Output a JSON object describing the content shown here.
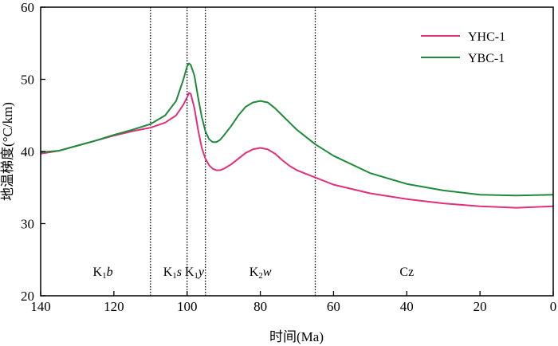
{
  "chart_data": {
    "type": "line",
    "xlabel": "时间(Ma)",
    "ylabel": "地温梯度(°C/km)",
    "xlim": [
      140,
      0
    ],
    "ylim": [
      20,
      60
    ],
    "x_reversed": true,
    "xticks": [
      "140",
      "120",
      "100",
      "80",
      "60",
      "40",
      "20",
      "0"
    ],
    "yticks": [
      "20",
      "30",
      "40",
      "50",
      "60"
    ],
    "legend_position": "top-right",
    "boundaries": [
      110,
      100,
      95,
      65
    ],
    "periods": [
      {
        "label": "K",
        "sub": "1",
        "suffix": "b",
        "x": 123
      },
      {
        "label": "K",
        "sub": "1",
        "suffix": "s",
        "x": 104
      },
      {
        "label": "K",
        "sub": "1",
        "suffix": "y",
        "x": 98
      },
      {
        "label": "K",
        "sub": "2",
        "suffix": "w",
        "x": 80
      },
      {
        "label": "Cz",
        "sub": "",
        "suffix": "",
        "x": 40
      }
    ],
    "series": [
      {
        "name": "YHC-1",
        "color": "#e0307a",
        "x": [
          140,
          135,
          130,
          125,
          120,
          115,
          110,
          106,
          103,
          101,
          100,
          99.5,
          99,
          98,
          97,
          96,
          95,
          94,
          93,
          92,
          91,
          90,
          88,
          86,
          84,
          82,
          80,
          78,
          76,
          74,
          72,
          70,
          68,
          66,
          65,
          60,
          50,
          40,
          30,
          20,
          10,
          0
        ],
        "values": [
          39.7,
          40.1,
          40.8,
          41.5,
          42.2,
          42.8,
          43.3,
          44.0,
          45.0,
          46.5,
          47.5,
          48.1,
          48.0,
          46.0,
          43.0,
          40.5,
          39.0,
          38.1,
          37.6,
          37.4,
          37.4,
          37.6,
          38.2,
          39.0,
          39.8,
          40.3,
          40.5,
          40.3,
          39.7,
          38.8,
          38.0,
          37.4,
          37.0,
          36.6,
          36.4,
          35.4,
          34.2,
          33.4,
          32.8,
          32.4,
          32.2,
          32.4
        ]
      },
      {
        "name": "YBC-1",
        "color": "#1f8a3a",
        "x": [
          140,
          135,
          130,
          125,
          120,
          115,
          110,
          106,
          103,
          101,
          100,
          99.5,
          99,
          98,
          97,
          96,
          95,
          94,
          93,
          92,
          91,
          90,
          88,
          86,
          84,
          82,
          80,
          78,
          76,
          74,
          72,
          70,
          68,
          66,
          65,
          60,
          50,
          40,
          30,
          20,
          10,
          0
        ],
        "values": [
          39.9,
          40.1,
          40.8,
          41.5,
          42.3,
          43.0,
          43.8,
          45.0,
          47.0,
          50.0,
          51.8,
          52.2,
          52.0,
          50.5,
          47.5,
          44.8,
          42.8,
          41.7,
          41.3,
          41.3,
          41.6,
          42.2,
          43.5,
          45.0,
          46.2,
          46.8,
          47.0,
          46.8,
          46.0,
          45.0,
          44.0,
          43.0,
          42.2,
          41.4,
          41.0,
          39.4,
          37.0,
          35.5,
          34.6,
          34.0,
          33.9,
          34.0
        ]
      }
    ]
  }
}
